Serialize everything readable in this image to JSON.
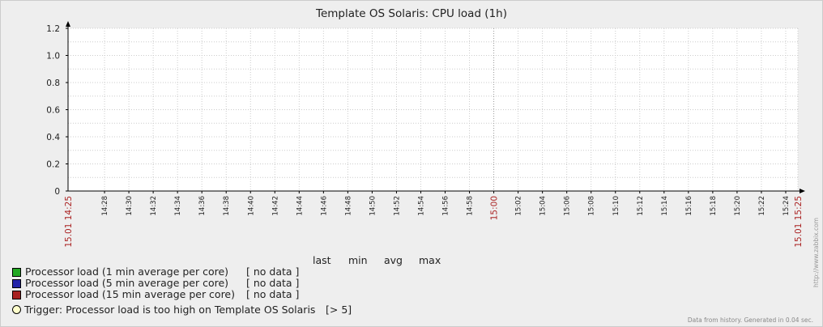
{
  "chart_data": {
    "type": "line",
    "title": "Template OS Solaris: CPU load (1h)",
    "xlabel": "",
    "ylabel": "",
    "ylim": [
      0,
      1.2
    ],
    "y_ticks": [
      "0",
      "0.2",
      "0.4",
      "0.6",
      "0.8",
      "1.0",
      "1.2"
    ],
    "x_start_label": "15.01 14:25",
    "x_end_label": "15.01 15:25",
    "x_ticks": [
      "14:28",
      "14:30",
      "14:32",
      "14:34",
      "14:36",
      "14:38",
      "14:40",
      "14:42",
      "14:44",
      "14:46",
      "14:48",
      "14:50",
      "14:52",
      "14:54",
      "14:56",
      "14:58",
      "15:00",
      "15:02",
      "15:04",
      "15:06",
      "15:08",
      "15:10",
      "15:12",
      "15:14",
      "15:16",
      "15:18",
      "15:20",
      "15:22",
      "15:24"
    ],
    "x_highlight_ticks": [
      "15:00"
    ],
    "grid": true,
    "series": [
      {
        "name": "Processor load (1 min average per core)",
        "color": "#1a9e1a",
        "values": []
      },
      {
        "name": "Processor load (5 min average per core)",
        "color": "#1a1aa8",
        "values": []
      },
      {
        "name": "Processor load (15 min average per core)",
        "color": "#a81a1a",
        "values": []
      }
    ]
  },
  "legend": {
    "columns": [
      "last",
      "min",
      "avg",
      "max"
    ],
    "items": [
      {
        "label": "Processor load (1 min average per core)",
        "value": "[ no data ]",
        "color": "#22a822"
      },
      {
        "label": "Processor load (5 min average per core)",
        "value": "[ no data ]",
        "color": "#2222a8"
      },
      {
        "label": "Processor load (15 min average per core)",
        "value": "[ no data ]",
        "color": "#a82222"
      }
    ]
  },
  "trigger": {
    "label": "Trigger: Processor load is too high on Template OS Solaris",
    "value": "[> 5]"
  },
  "footer_note": "Data from history. Generated in 0.04 sec.",
  "watermark": "http://www.zabbix.com",
  "colors": {
    "background": "#eeeeee",
    "plot_area": "#ffffff",
    "grid": "#cccccc",
    "axis": "#000000",
    "highlight_label": "#aa2222"
  }
}
